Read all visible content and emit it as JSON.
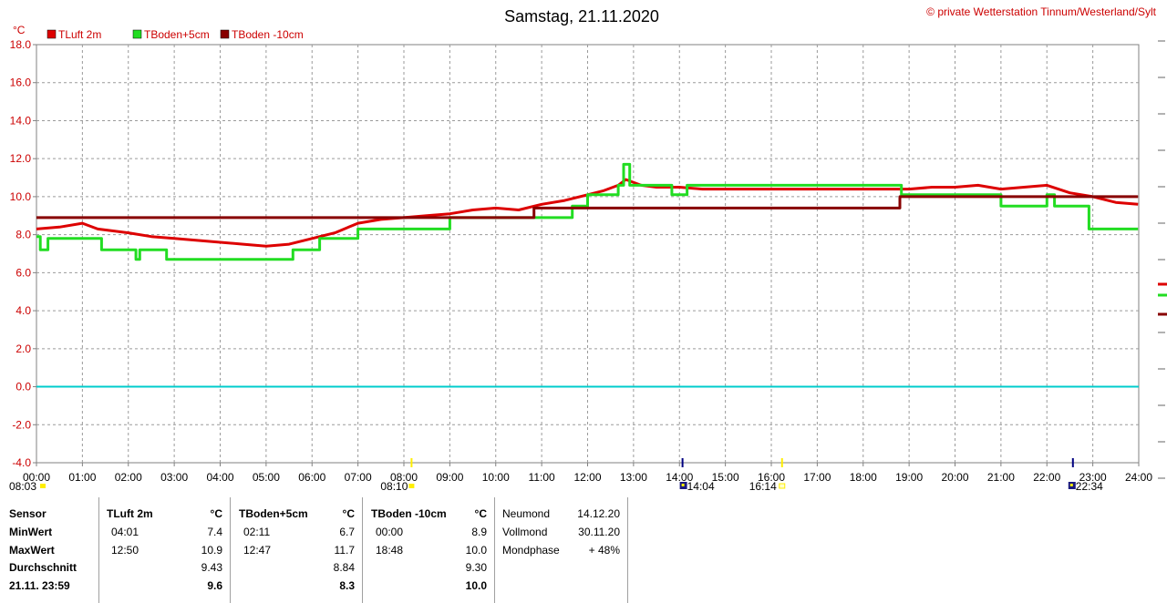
{
  "header": {
    "title": "Samstag, 21.11.2020",
    "copyright": "© private Wetterstation Tinnum/Westerland/Sylt"
  },
  "chart_data": {
    "type": "line",
    "title": "Samstag, 21.11.2020",
    "ylabel": "°C",
    "ylim": [
      -4,
      18
    ],
    "y_ticks": [
      "18.0",
      "16.0",
      "14.0",
      "12.0",
      "10.0",
      "8.0",
      "6.0",
      "4.0",
      "2.0",
      "0.0",
      "-2.0",
      "-4.0"
    ],
    "xlim": [
      "00:00",
      "24:00"
    ],
    "x_ticks": [
      "00:00",
      "01:00",
      "02:00",
      "03:00",
      "04:00",
      "05:00",
      "06:00",
      "07:00",
      "08:00",
      "09:00",
      "10:00",
      "11:00",
      "12:00",
      "13:00",
      "14:00",
      "15:00",
      "16:00",
      "17:00",
      "18:00",
      "19:00",
      "20:00",
      "21:00",
      "22:00",
      "23:00",
      "24:00"
    ],
    "grid": true,
    "legend": "top-left",
    "zero_line_color": "#00cccc",
    "series": [
      {
        "name": "TLuft 2m",
        "color": "#dd0000",
        "x": [
          "00:00",
          "00:30",
          "01:00",
          "01:20",
          "01:40",
          "02:00",
          "02:30",
          "03:00",
          "03:30",
          "04:00",
          "04:30",
          "05:00",
          "05:30",
          "06:00",
          "06:30",
          "07:00",
          "07:30",
          "08:00",
          "08:30",
          "09:00",
          "09:30",
          "10:00",
          "10:30",
          "11:00",
          "11:30",
          "12:00",
          "12:20",
          "12:40",
          "12:50",
          "13:10",
          "13:30",
          "14:00",
          "14:30",
          "15:00",
          "16:00",
          "17:00",
          "18:00",
          "19:00",
          "19:30",
          "20:00",
          "20:30",
          "21:00",
          "21:30",
          "22:00",
          "22:30",
          "23:00",
          "23:30",
          "23:59"
        ],
        "y": [
          8.3,
          8.4,
          8.6,
          8.3,
          8.2,
          8.1,
          7.9,
          7.8,
          7.7,
          7.6,
          7.5,
          7.4,
          7.5,
          7.8,
          8.1,
          8.6,
          8.8,
          8.9,
          9.0,
          9.1,
          9.3,
          9.4,
          9.3,
          9.6,
          9.8,
          10.1,
          10.3,
          10.6,
          10.9,
          10.6,
          10.5,
          10.5,
          10.4,
          10.4,
          10.4,
          10.4,
          10.4,
          10.4,
          10.5,
          10.5,
          10.6,
          10.4,
          10.5,
          10.6,
          10.2,
          10.0,
          9.7,
          9.6
        ]
      },
      {
        "name": "TBoden+5cm",
        "color": "#22dd22",
        "x": [
          "00:00",
          "00:05",
          "00:15",
          "01:25",
          "02:10",
          "02:15",
          "02:50",
          "05:35",
          "06:10",
          "07:00",
          "09:00",
          "11:40",
          "12:00",
          "12:40",
          "12:47",
          "12:55",
          "13:00",
          "13:50",
          "14:10",
          "18:50",
          "20:45",
          "21:00",
          "21:30",
          "22:00",
          "22:10",
          "22:55",
          "23:59"
        ],
        "y": [
          7.9,
          7.2,
          7.8,
          7.2,
          6.7,
          7.2,
          6.7,
          7.2,
          7.8,
          8.3,
          8.9,
          9.5,
          10.1,
          10.6,
          11.7,
          10.6,
          10.6,
          10.1,
          10.6,
          10.1,
          10.1,
          9.5,
          9.5,
          10.1,
          9.5,
          8.3,
          8.3
        ],
        "step": true
      },
      {
        "name": "TBoden -10cm",
        "color": "#880000",
        "x": [
          "00:00",
          "08:50",
          "10:50",
          "18:48",
          "23:59"
        ],
        "y": [
          8.9,
          8.9,
          9.4,
          10.0,
          10.0
        ],
        "step": true
      }
    ],
    "markers": [
      {
        "label": "08:03",
        "icon": "sunrise-icon"
      },
      {
        "label": "08:10",
        "icon": "sun-icon"
      },
      {
        "label": "14:04",
        "icon": "moonrise-icon"
      },
      {
        "label": "16:14",
        "icon": "sunset-icon"
      },
      {
        "label": "22:34",
        "icon": "moonset-icon"
      }
    ]
  },
  "table": {
    "col1": {
      "sensor": "Sensor",
      "min": "MinWert",
      "max": "MaxWert",
      "avg": "Durchschnitt",
      "now": "21.11. 23:59"
    },
    "tluft": {
      "head": "TLuft 2m",
      "unit": "°C",
      "min_time": "04:01",
      "min_val": "7.4",
      "max_time": "12:50",
      "max_val": "10.9",
      "avg": "9.43",
      "now": "9.6"
    },
    "tboden5": {
      "head": "TBoden+5cm",
      "unit": "°C",
      "min_time": "02:11",
      "min_val": "6.7",
      "max_time": "12:47",
      "max_val": "11.7",
      "avg": "8.84",
      "now": "8.3"
    },
    "tboden10": {
      "head": "TBoden -10cm",
      "unit": "°C",
      "min_time": "00:00",
      "min_val": "8.9",
      "max_time": "18:48",
      "max_val": "10.0",
      "avg": "9.30",
      "now": "10.0"
    },
    "moon": {
      "neumond_label": "Neumond",
      "neumond_date": "14.12.20",
      "vollmond_label": "Vollmond",
      "vollmond_date": "30.11.20",
      "phase_label": "Mondphase",
      "phase_value": "+ 48%"
    }
  }
}
